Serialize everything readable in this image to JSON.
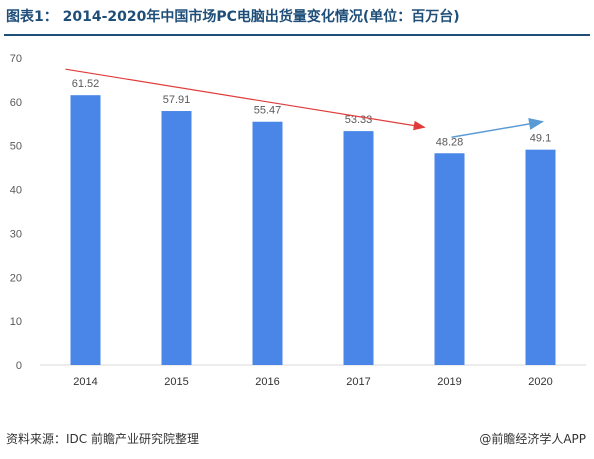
{
  "title": "图表1：  2014-2020年中国市场PC电脑出货量变化情况(单位：百万台)",
  "source": "资料来源：IDC 前瞻产业研究院整理",
  "brand": "@前瞻经济学人APP",
  "colors": {
    "bar": "#4a86e8",
    "title": "#1f4e79",
    "trend_down": "#e03c3c",
    "trend_up": "#5b9bd5",
    "grid": "#d9d9d9",
    "text": "#595959"
  },
  "chart_data": {
    "type": "bar",
    "categories": [
      "2014",
      "2015",
      "2016",
      "2017",
      "2019",
      "2020"
    ],
    "values": [
      61.52,
      57.91,
      55.47,
      53.33,
      48.28,
      49.1
    ],
    "data_labels": [
      "61.52",
      "57.91",
      "55.47",
      "53.33",
      "48.28",
      "49.1"
    ],
    "title": "图表1：  2014-2020年中国市场PC电脑出货量变化情况(单位：百万台)",
    "xlabel": "",
    "ylabel": "",
    "ylim": [
      0,
      70
    ],
    "yticks": [
      0,
      10,
      20,
      30,
      40,
      50,
      60,
      70
    ],
    "grid": false,
    "annotations": [
      {
        "kind": "arrow",
        "color": "red",
        "from_category": "2014",
        "to_category": "2019",
        "direction": "down"
      },
      {
        "kind": "arrow",
        "color": "blue",
        "from_category": "2019",
        "to_category": "2020",
        "direction": "up"
      }
    ]
  }
}
